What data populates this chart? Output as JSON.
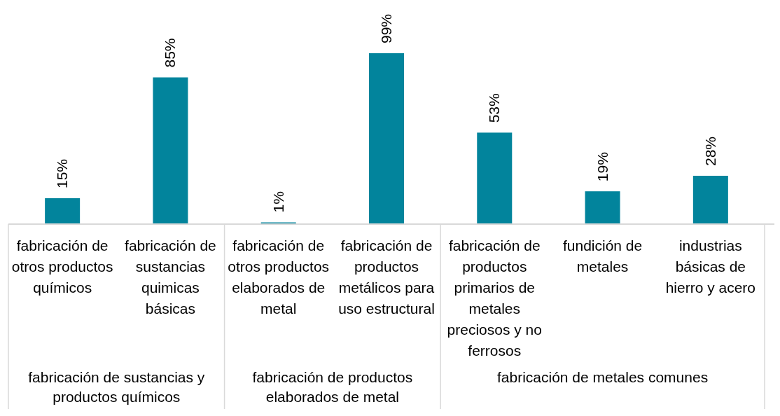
{
  "chart_data": {
    "type": "bar",
    "categories": [
      "fabricación de otros productos químicos",
      "fabricación de sustancias quimicas básicas",
      "fabricación de otros productos elaborados de metal",
      "fabricación de productos metálicos para uso estructural",
      "fabricación de productos primarios de metales preciosos y no ferrosos",
      "fundición de metales",
      "industrias básicas de hierro y acero"
    ],
    "values": [
      15,
      85,
      1,
      99,
      53,
      19,
      28
    ],
    "value_labels": [
      "15%",
      "85%",
      "1%",
      "99%",
      "53%",
      "19%",
      "28%"
    ],
    "color": "#02849c",
    "annotations": [
      "fabricación de sustancias y productos químicos",
      "fabricación de productos elaborados de metal",
      "fabricación de metales comunes"
    ]
  }
}
